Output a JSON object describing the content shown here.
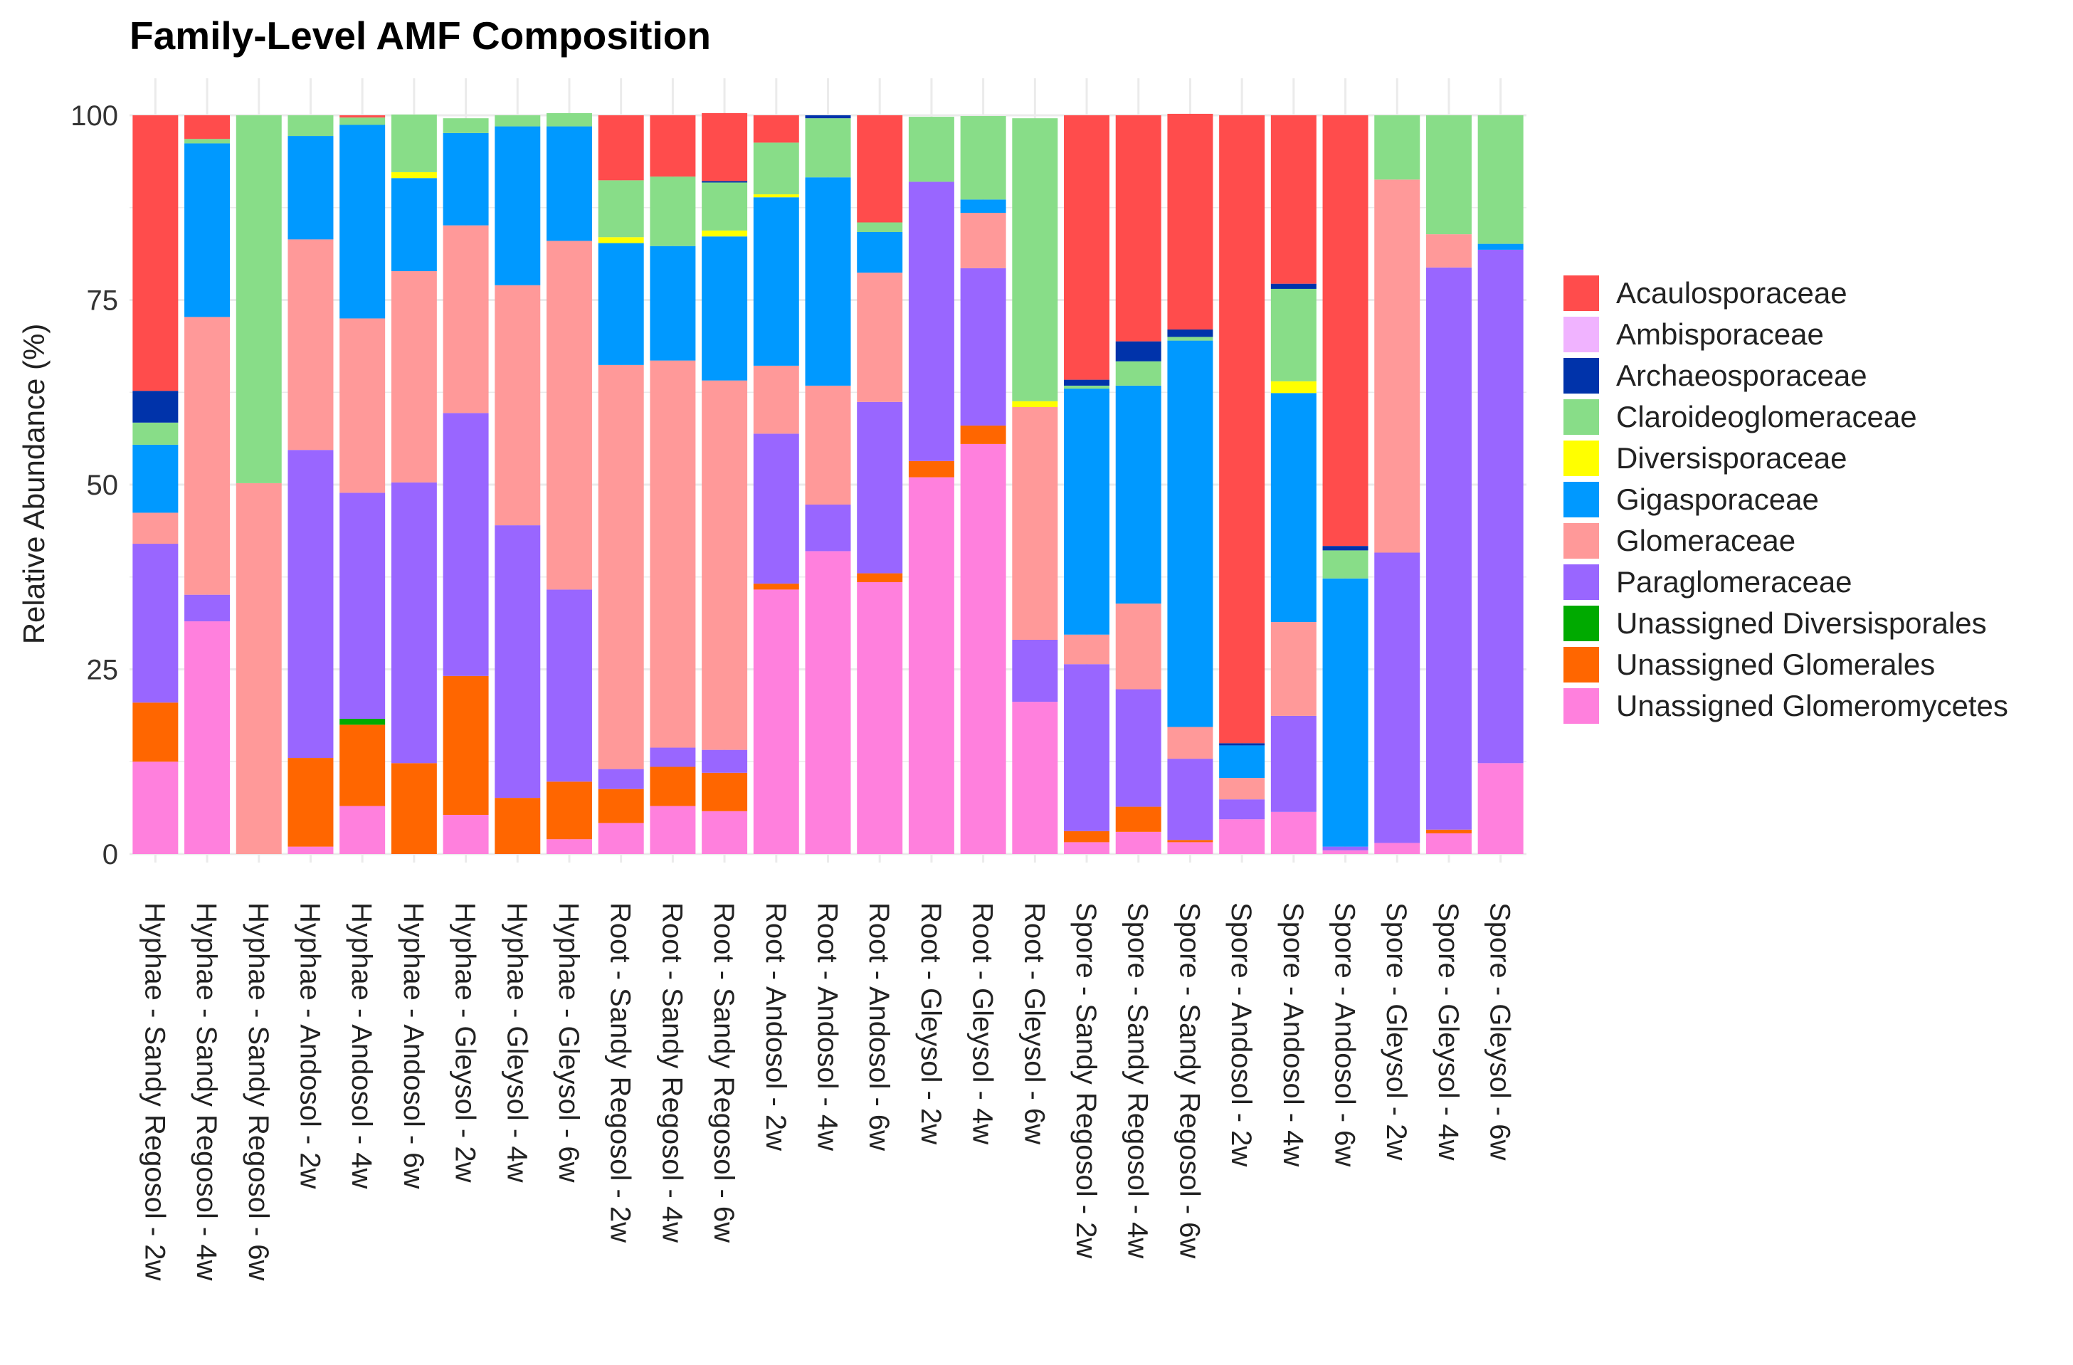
{
  "chart_data": {
    "type": "bar",
    "stacked": true,
    "title": "Family-Level AMF Composition",
    "xlabel": "",
    "ylabel": "Relative Abundance (%)",
    "ylim": [
      0,
      100
    ],
    "yticks": [
      0,
      25,
      50,
      75,
      100
    ],
    "grid": true,
    "legend_position": "right",
    "categories": [
      "Hyphae - Sandy Regosol - 2w",
      "Hyphae - Sandy Regosol - 4w",
      "Hyphae - Sandy Regosol - 6w",
      "Hyphae - Andosol - 2w",
      "Hyphae - Andosol - 4w",
      "Hyphae - Andosol - 6w",
      "Hyphae - Gleysol - 2w",
      "Hyphae - Gleysol - 4w",
      "Hyphae - Gleysol - 6w",
      "Root - Sandy Regosol - 2w",
      "Root - Sandy Regosol - 4w",
      "Root - Sandy Regosol - 6w",
      "Root - Andosol - 2w",
      "Root - Andosol - 4w",
      "Root - Andosol - 6w",
      "Root - Gleysol - 2w",
      "Root - Gleysol - 4w",
      "Root - Gleysol - 6w",
      "Spore - Sandy Regosol - 2w",
      "Spore - Sandy Regosol - 4w",
      "Spore - Sandy Regosol - 6w",
      "Spore - Andosol - 2w",
      "Spore - Andosol - 4w",
      "Spore - Andosol - 6w",
      "Spore - Gleysol - 2w",
      "Spore - Gleysol - 4w",
      "Spore - Gleysol - 6w"
    ],
    "series": [
      {
        "name": "Unassigned Glomeromycetes",
        "color": "#FF80DD",
        "values": [
          12.5,
          31.5,
          0,
          1,
          6.5,
          0,
          5.3,
          0,
          2,
          4.2,
          6.5,
          5.8,
          35.8,
          41,
          36.8,
          51,
          55.5,
          20.6,
          1.6,
          3,
          1.6,
          4.7,
          5.7,
          0.5,
          1.5,
          2.8,
          12.3
        ]
      },
      {
        "name": "Unassigned Glomerales",
        "color": "#FF6600",
        "values": [
          8,
          0,
          0,
          12,
          11,
          12.3,
          18.8,
          7.6,
          7.8,
          4.6,
          5.3,
          5.2,
          0.8,
          0,
          1.2,
          2.2,
          2.5,
          0,
          1.5,
          3.4,
          0.3,
          0,
          0,
          0,
          0,
          0.5,
          0
        ]
      },
      {
        "name": "Unassigned Diversisporales",
        "color": "#00AA00",
        "values": [
          0,
          0,
          0,
          0,
          0.8,
          0,
          0,
          0,
          0,
          0,
          0,
          0,
          0,
          0,
          0,
          0,
          0,
          0,
          0,
          0,
          0,
          0,
          0,
          0,
          0,
          0,
          0
        ]
      },
      {
        "name": "Paraglomeraceae",
        "color": "#9966FF",
        "values": [
          21.5,
          3.6,
          0,
          41.7,
          30.6,
          38,
          35.6,
          36.9,
          26,
          2.7,
          2.6,
          3.1,
          20.3,
          6.3,
          23.2,
          37.8,
          21.3,
          8.4,
          22.6,
          15.9,
          11,
          2.7,
          13,
          0.5,
          39.3,
          76.1,
          69.5
        ]
      },
      {
        "name": "Glomeraceae",
        "color": "#FF9999",
        "values": [
          4.2,
          37.6,
          50.2,
          28.5,
          23.6,
          28.6,
          25.4,
          32.5,
          47.2,
          54.7,
          52.4,
          50,
          9.2,
          16.1,
          17.5,
          0,
          7.5,
          31.5,
          4,
          11.6,
          4.3,
          2.9,
          12.7,
          0,
          50.5,
          4.5,
          0
        ]
      },
      {
        "name": "Gigasporaceae",
        "color": "#0099FF",
        "values": [
          9.2,
          23.5,
          0,
          14,
          26.2,
          12.6,
          12.5,
          21.5,
          15.5,
          16.5,
          15.5,
          19.5,
          22.8,
          28.2,
          5.5,
          0,
          1.8,
          0,
          33.3,
          29.5,
          52.3,
          4.4,
          31,
          36.3,
          0,
          0,
          0.8
        ]
      },
      {
        "name": "Diversisporaceae",
        "color": "#FFFF00",
        "values": [
          0,
          0,
          0,
          0,
          0,
          0.8,
          0,
          0,
          0,
          0.8,
          0,
          0.8,
          0.4,
          0,
          0,
          0,
          0,
          0.8,
          0,
          0,
          0,
          0,
          1.6,
          0,
          0,
          0,
          0
        ]
      },
      {
        "name": "Claroideoglomeraceae",
        "color": "#88DD88",
        "values": [
          3,
          0.6,
          49.8,
          2.8,
          1,
          7.8,
          2,
          1.5,
          1.8,
          7.7,
          9.4,
          6.5,
          7,
          8,
          1.3,
          8.8,
          11.3,
          38.3,
          0.4,
          3.3,
          0.5,
          0,
          12.5,
          3.8,
          8.7,
          16.1,
          17.4
        ]
      },
      {
        "name": "Archaeosporaceae",
        "color": "#0033AA",
        "values": [
          4.3,
          0,
          0,
          0,
          0,
          0,
          0,
          0,
          0,
          0,
          0,
          0.2,
          0,
          0.4,
          0,
          0,
          0,
          0,
          0.8,
          2.7,
          1,
          0.3,
          0.7,
          0.6,
          0,
          0,
          0
        ]
      },
      {
        "name": "Ambisporaceae",
        "color": "#F0B3FF",
        "values": [
          0,
          0,
          0,
          0,
          0,
          0,
          0,
          0,
          0,
          0,
          0,
          0,
          0,
          0,
          0,
          0,
          0,
          0,
          0,
          0,
          0,
          0,
          0,
          0,
          0,
          0,
          0
        ]
      },
      {
        "name": "Acaulosporaceae",
        "color": "#FF4C4C",
        "values": [
          37.3,
          3.2,
          0,
          0,
          0.3,
          0,
          0,
          0,
          0,
          8.8,
          8.3,
          9.2,
          3.7,
          0,
          14.5,
          0,
          0,
          0,
          35.8,
          30.6,
          29.2,
          85,
          22.8,
          58.3,
          0,
          0,
          0
        ]
      }
    ],
    "legend_entries": [
      {
        "name": "Acaulosporaceae",
        "color": "#FF4C4C"
      },
      {
        "name": "Ambisporaceae",
        "color": "#F0B3FF"
      },
      {
        "name": "Archaeosporaceae",
        "color": "#0033AA"
      },
      {
        "name": "Claroideoglomeraceae",
        "color": "#88DD88"
      },
      {
        "name": "Diversisporaceae",
        "color": "#FFFF00"
      },
      {
        "name": "Gigasporaceae",
        "color": "#0099FF"
      },
      {
        "name": "Glomeraceae",
        "color": "#FF9999"
      },
      {
        "name": "Paraglomeraceae",
        "color": "#9966FF"
      },
      {
        "name": "Unassigned Diversisporales",
        "color": "#00AA00"
      },
      {
        "name": "Unassigned Glomerales",
        "color": "#FF6600"
      },
      {
        "name": "Unassigned Glomeromycetes",
        "color": "#FF80DD"
      }
    ]
  }
}
